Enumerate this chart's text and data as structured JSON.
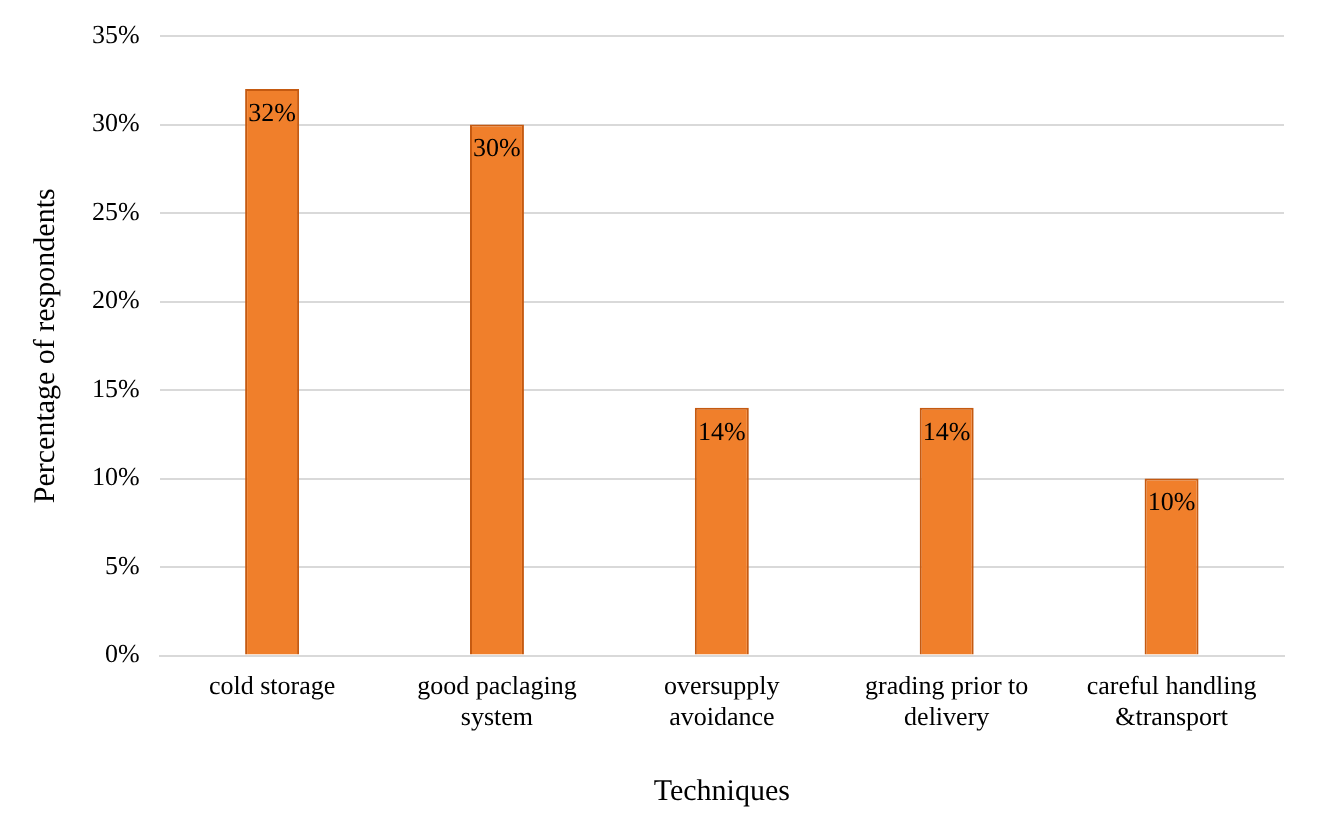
{
  "chart_data": {
    "type": "bar",
    "xlabel": "Techniques",
    "ylabel": "Percentage of respondents",
    "categories": [
      "cold storage",
      "good paclaging system",
      "oversupply avoidance",
      "grading prior to delivery",
      "careful handling &transport"
    ],
    "values": [
      32,
      30,
      14,
      14,
      10
    ],
    "value_labels": [
      "32%",
      "30%",
      "14%",
      "14%",
      "10%"
    ],
    "color": "#f07f2b",
    "ylim": [
      0,
      35
    ],
    "yticks": [
      {
        "value": 0,
        "label": "0%"
      },
      {
        "value": 5,
        "label": "5%"
      },
      {
        "value": 10,
        "label": "10%"
      },
      {
        "value": 15,
        "label": "15%"
      },
      {
        "value": 20,
        "label": "20%"
      },
      {
        "value": 25,
        "label": "25%"
      },
      {
        "value": 30,
        "label": "30%"
      },
      {
        "value": 35,
        "label": "35%"
      }
    ],
    "grid": "y",
    "legend": false
  }
}
